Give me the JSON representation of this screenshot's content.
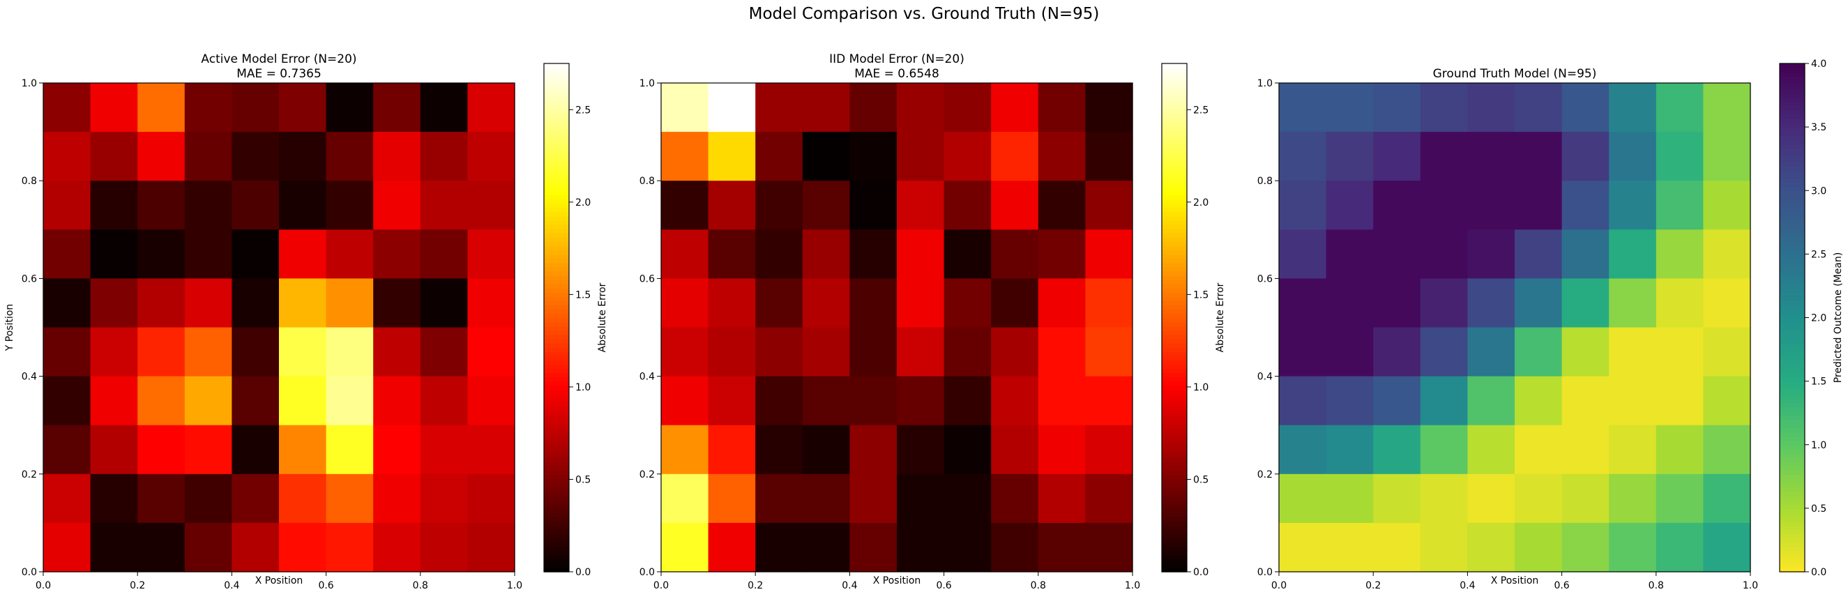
{
  "figure": {
    "title": "Model Comparison vs. Ground Truth (N=95)"
  },
  "chart_data": [
    {
      "type": "heatmap",
      "title": "Active Model Error (N=20)",
      "subtitle": "MAE = 0.7365",
      "xlabel": "X Position",
      "ylabel": "Y Position",
      "xlim": [
        0,
        1
      ],
      "ylim": [
        0,
        1
      ],
      "xticks": [
        "0.0",
        "0.2",
        "0.4",
        "0.6",
        "0.8",
        "1.0"
      ],
      "yticks": [
        "0.0",
        "0.2",
        "0.4",
        "0.6",
        "0.8",
        "1.0"
      ],
      "colormap": "hot",
      "colorbar": {
        "label": "Absolute Error",
        "range": [
          0,
          2.75
        ],
        "ticks": [
          "0.0",
          "0.5",
          "1.0",
          "1.5",
          "2.0",
          "2.5"
        ]
      },
      "rows_top_to_bottom": [
        [
          0.55,
          0.95,
          1.45,
          0.45,
          0.4,
          0.5,
          0.05,
          0.45,
          0.05,
          0.85
        ],
        [
          0.75,
          0.6,
          0.95,
          0.4,
          0.2,
          0.15,
          0.4,
          0.9,
          0.6,
          0.75
        ],
        [
          0.7,
          0.15,
          0.3,
          0.2,
          0.3,
          0.1,
          0.2,
          0.95,
          0.7,
          0.7
        ],
        [
          0.45,
          0.03,
          0.1,
          0.2,
          0.03,
          0.95,
          0.75,
          0.55,
          0.45,
          0.85
        ],
        [
          0.1,
          0.5,
          0.7,
          0.85,
          0.1,
          1.75,
          1.6,
          0.2,
          0.05,
          0.95
        ],
        [
          0.4,
          0.8,
          1.15,
          1.4,
          0.25,
          2.25,
          2.4,
          0.75,
          0.5,
          1.0
        ],
        [
          0.2,
          0.95,
          1.45,
          1.7,
          0.35,
          2.15,
          2.45,
          0.95,
          0.75,
          0.95
        ],
        [
          0.35,
          0.7,
          1.0,
          1.05,
          0.1,
          1.55,
          2.15,
          1.0,
          0.85,
          0.85
        ],
        [
          0.8,
          0.15,
          0.35,
          0.25,
          0.45,
          1.2,
          1.4,
          0.95,
          0.8,
          0.75
        ],
        [
          0.9,
          0.1,
          0.1,
          0.4,
          0.7,
          1.05,
          1.1,
          0.85,
          0.75,
          0.7
        ]
      ]
    },
    {
      "type": "heatmap",
      "title": "IID Model Error (N=20)",
      "subtitle": "MAE = 0.6548",
      "xlabel": "X Position",
      "xlim": [
        0,
        1
      ],
      "ylim": [
        0,
        1
      ],
      "xticks": [
        "0.0",
        "0.2",
        "0.4",
        "0.6",
        "0.8",
        "1.0"
      ],
      "yticks": [
        "0.0",
        "0.2",
        "0.4",
        "0.6",
        "0.8",
        "1.0"
      ],
      "colormap": "hot",
      "colorbar": {
        "label": "Absolute Error",
        "range": [
          0,
          2.75
        ],
        "ticks": [
          "0.0",
          "0.5",
          "1.0",
          "1.5",
          "2.0",
          "2.5"
        ]
      },
      "rows_top_to_bottom": [
        [
          2.55,
          2.75,
          0.6,
          0.6,
          0.4,
          0.6,
          0.55,
          0.95,
          0.45,
          0.15
        ],
        [
          1.45,
          1.9,
          0.45,
          0.02,
          0.05,
          0.6,
          0.7,
          1.15,
          0.55,
          0.2
        ],
        [
          0.2,
          0.65,
          0.25,
          0.35,
          0.03,
          0.8,
          0.45,
          0.95,
          0.2,
          0.55
        ],
        [
          0.75,
          0.35,
          0.2,
          0.6,
          0.15,
          0.95,
          0.1,
          0.4,
          0.45,
          0.95
        ],
        [
          0.9,
          0.75,
          0.35,
          0.7,
          0.3,
          0.95,
          0.45,
          0.25,
          0.95,
          1.2
        ],
        [
          0.8,
          0.7,
          0.55,
          0.65,
          0.3,
          0.8,
          0.4,
          0.65,
          1.05,
          1.25
        ],
        [
          0.95,
          0.8,
          0.25,
          0.35,
          0.35,
          0.4,
          0.2,
          0.75,
          1.05,
          1.05
        ],
        [
          1.6,
          1.1,
          0.15,
          0.1,
          0.55,
          0.15,
          0.05,
          0.7,
          0.95,
          0.85
        ],
        [
          2.3,
          1.4,
          0.35,
          0.35,
          0.55,
          0.1,
          0.1,
          0.4,
          0.7,
          0.55
        ],
        [
          2.15,
          0.95,
          0.1,
          0.1,
          0.4,
          0.1,
          0.1,
          0.25,
          0.35,
          0.35
        ]
      ]
    },
    {
      "type": "heatmap",
      "title": "Ground Truth Model (N=95)",
      "xlabel": "X Position",
      "xlim": [
        0,
        1
      ],
      "ylim": [
        0,
        1
      ],
      "xticks": [
        "0.0",
        "0.2",
        "0.4",
        "0.6",
        "0.8",
        "1.0"
      ],
      "yticks": [
        "0.0",
        "0.2",
        "0.4",
        "0.6",
        "0.8",
        "1.0"
      ],
      "colormap": "viridis_r",
      "colorbar": {
        "label": "Predicted Outcome (Mean)",
        "range": [
          0,
          4
        ],
        "ticks": [
          "0.0",
          "0.5",
          "1.0",
          "1.5",
          "2.0",
          "2.5",
          "3.0",
          "3.5",
          "4.0"
        ]
      },
      "rows_top_to_bottom": [
        [
          2.9,
          2.9,
          3.0,
          3.2,
          3.3,
          3.2,
          2.9,
          2.2,
          1.3,
          0.7
        ],
        [
          3.1,
          3.3,
          3.5,
          3.9,
          3.9,
          3.9,
          3.3,
          2.4,
          1.4,
          0.7
        ],
        [
          3.2,
          3.5,
          3.9,
          3.9,
          3.9,
          3.9,
          3.0,
          2.2,
          1.2,
          0.5
        ],
        [
          3.4,
          3.9,
          3.9,
          3.9,
          3.8,
          3.2,
          2.5,
          1.5,
          0.6,
          0.2
        ],
        [
          3.9,
          3.9,
          3.9,
          3.6,
          3.1,
          2.4,
          1.5,
          0.7,
          0.2,
          0.1
        ],
        [
          3.9,
          3.9,
          3.6,
          3.1,
          2.4,
          1.2,
          0.4,
          0.1,
          0.1,
          0.2
        ],
        [
          3.2,
          3.1,
          2.9,
          2.1,
          1.1,
          0.4,
          0.1,
          0.1,
          0.1,
          0.4
        ],
        [
          2.2,
          2.1,
          1.6,
          1.0,
          0.4,
          0.1,
          0.1,
          0.2,
          0.5,
          0.8
        ],
        [
          0.5,
          0.5,
          0.3,
          0.2,
          0.1,
          0.2,
          0.3,
          0.6,
          0.9,
          1.3
        ],
        [
          0.1,
          0.1,
          0.1,
          0.2,
          0.3,
          0.5,
          0.7,
          1.0,
          1.3,
          1.6
        ]
      ]
    }
  ]
}
